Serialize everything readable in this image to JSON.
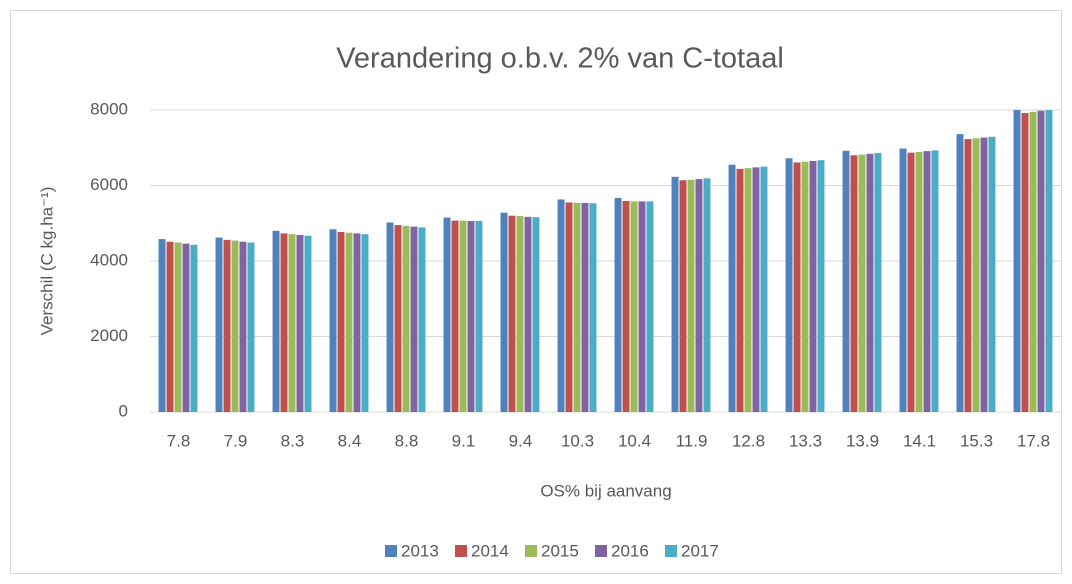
{
  "chart_data": {
    "type": "bar",
    "title": "Verandering o.b.v. 2% van C-totaal",
    "x_label": "OS% bij aanvang",
    "y_label": "Verschil  (C kg.ha⁻¹)",
    "categories": [
      "7.8",
      "7.9",
      "8.3",
      "8.4",
      "8.8",
      "9.1",
      "9.4",
      "10.3",
      "10.4",
      "11.9",
      "12.8",
      "13.3",
      "13.9",
      "14.1",
      "15.3",
      "17.8"
    ],
    "series": [
      {
        "name": "2013",
        "color": "#4f81bd",
        "values": [
          4580,
          4620,
          4800,
          4840,
          5020,
          5150,
          5280,
          5630,
          5670,
          6230,
          6550,
          6720,
          6920,
          6980,
          7360,
          8000
        ]
      },
      {
        "name": "2014",
        "color": "#c0504d",
        "values": [
          4510,
          4560,
          4730,
          4770,
          4950,
          5070,
          5200,
          5550,
          5590,
          6140,
          6440,
          6610,
          6800,
          6870,
          7230,
          7920
        ]
      },
      {
        "name": "2015",
        "color": "#9bbb59",
        "values": [
          4490,
          4540,
          4710,
          4750,
          4930,
          5070,
          5190,
          5540,
          5580,
          6150,
          6460,
          6630,
          6820,
          6890,
          7250,
          7950
        ]
      },
      {
        "name": "2016",
        "color": "#8064a2",
        "values": [
          4460,
          4510,
          4690,
          4730,
          4910,
          5060,
          5170,
          5540,
          5580,
          6170,
          6480,
          6650,
          6840,
          6910,
          7270,
          7980
        ]
      },
      {
        "name": "2017",
        "color": "#4bacc6",
        "values": [
          4430,
          4490,
          4670,
          4710,
          4890,
          5060,
          5160,
          5530,
          5580,
          6190,
          6500,
          6670,
          6860,
          6930,
          7290,
          8000
        ]
      }
    ],
    "ylim": [
      0,
      8000
    ],
    "yticks": [
      0,
      2000,
      4000,
      6000,
      8000
    ],
    "grid": true,
    "legend": "bottom"
  }
}
